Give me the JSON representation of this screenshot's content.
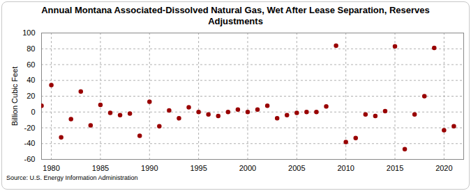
{
  "chart_data": {
    "type": "scatter",
    "title": "Annual Montana Associated-Dissolved Natural Gas, Wet After Lease Separation, Reserves Adjustments",
    "y_label": "Billion Cubic Feet",
    "source": "Source: U.S. Energy Information Administration",
    "x": [
      1979,
      1980,
      1981,
      1982,
      1983,
      1984,
      1985,
      1986,
      1987,
      1988,
      1989,
      1990,
      1991,
      1992,
      1993,
      1994,
      1995,
      1996,
      1997,
      1998,
      1999,
      2000,
      2001,
      2002,
      2003,
      2004,
      2005,
      2006,
      2007,
      2008,
      2009,
      2010,
      2011,
      2012,
      2013,
      2014,
      2015,
      2016,
      2017,
      2018,
      2019,
      2020,
      2021
    ],
    "values": [
      8,
      34,
      -32,
      -9,
      26,
      -17,
      9,
      -1,
      -4,
      -2,
      -30,
      13,
      -18,
      2,
      -8,
      6,
      0,
      -3,
      -5,
      0,
      3,
      0,
      3,
      8,
      -8,
      -4,
      -1,
      0,
      0,
      7,
      84,
      -38,
      -33,
      -3,
      -5,
      1,
      83,
      -47,
      -3,
      20,
      81,
      -23,
      -18
    ],
    "color": "#990000",
    "marker": "circle",
    "xlim": [
      1979,
      2022
    ],
    "xticks": [
      1980,
      1985,
      1990,
      1995,
      2000,
      2005,
      2010,
      2015,
      2020
    ],
    "ylim": [
      -60,
      100
    ],
    "yticks": [
      -60,
      -40,
      -20,
      0,
      20,
      40,
      60,
      80,
      100
    ],
    "grid": true
  }
}
